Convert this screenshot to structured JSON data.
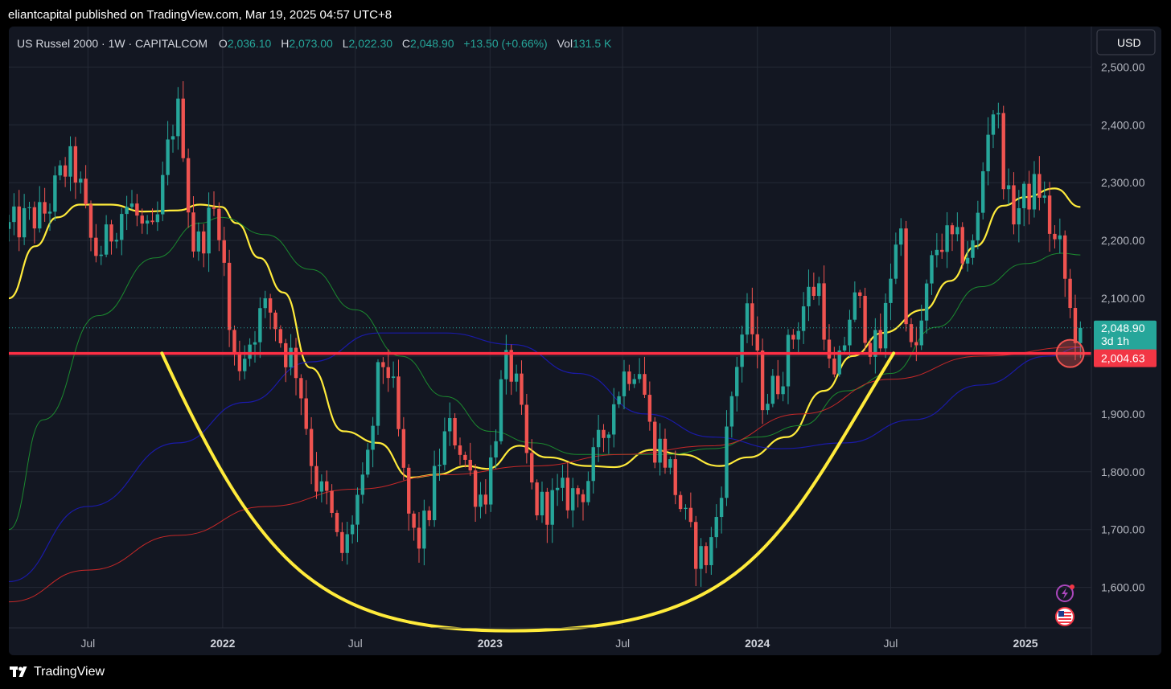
{
  "header": {
    "publisher_line": "eliantcapital published on TradingView.com, Mar 19, 2025 04:57 UTC+8"
  },
  "legend": {
    "symbol": "US Russel 2000 · 1W · CAPITALCOM",
    "o_label": "O",
    "o_value": "2,036.10",
    "h_label": "H",
    "h_value": "2,073.00",
    "l_label": "L",
    "l_value": "2,022.30",
    "c_label": "C",
    "c_value": "2,048.90",
    "change": "+13.50 (+0.66%)",
    "vol_label": "Vol",
    "vol_value": "131.5 K"
  },
  "currency_button": {
    "label": "USD"
  },
  "price_badges": {
    "last_price": "2,048.90",
    "countdown": "3d 1h",
    "line_level": "2,004.63"
  },
  "footer": {
    "brand": "TradingView"
  },
  "colors": {
    "background": "#131722",
    "grid": "#252a36",
    "up": "#26a69a",
    "down": "#ef5350",
    "ma_fast": "#ffeb3b",
    "ma_mid": "#1b8a2f",
    "ma_slow_blue": "#1a1aa8",
    "ma_slow_red": "#c62828",
    "horizontal_line": "#ff2f45",
    "cup_curve": "#ffeb3b",
    "axis_text": "#b2b5be"
  },
  "chart_data": {
    "type": "candlestick",
    "timeframe": "1W",
    "ylim": [
      1530,
      2570
    ],
    "y_ticks": [
      1600,
      1700,
      1800,
      1900,
      2000,
      2100,
      2200,
      2300,
      2400,
      2500
    ],
    "y_tick_labels": [
      "1,600.00",
      "1,700.00",
      "1,800.00",
      "1,900.00",
      "2,000.00",
      "2,100.00",
      "2,200.00",
      "2,300.00",
      "2,400.00",
      "2,500.00"
    ],
    "x_ticks": [
      {
        "date": "2021-07-01",
        "label": "Jul"
      },
      {
        "date": "2022-01-01",
        "label": "2022"
      },
      {
        "date": "2022-07-01",
        "label": "Jul"
      },
      {
        "date": "2023-01-01",
        "label": "2023"
      },
      {
        "date": "2023-07-01",
        "label": "Jul"
      },
      {
        "date": "2024-01-01",
        "label": "2024"
      },
      {
        "date": "2024-07-01",
        "label": "Jul"
      },
      {
        "date": "2025-01-01",
        "label": "2025"
      }
    ],
    "x_range": [
      "2021-03-15",
      "2025-04-01"
    ],
    "horizontal_line": {
      "value": 2004.63
    },
    "last_price": 2048.9,
    "anchors": [
      {
        "date": "2021-03-15",
        "value": 2220
      },
      {
        "date": "2021-05-01",
        "value": 2240
      },
      {
        "date": "2021-06-15",
        "value": 2330
      },
      {
        "date": "2021-07-20",
        "value": 2180
      },
      {
        "date": "2021-09-01",
        "value": 2260
      },
      {
        "date": "2021-10-01",
        "value": 2200
      },
      {
        "date": "2021-11-08",
        "value": 2420
      },
      {
        "date": "2021-12-01",
        "value": 2190
      },
      {
        "date": "2021-12-30",
        "value": 2250
      },
      {
        "date": "2022-01-25",
        "value": 1990
      },
      {
        "date": "2022-03-10",
        "value": 2080
      },
      {
        "date": "2022-04-10",
        "value": 2000
      },
      {
        "date": "2022-05-25",
        "value": 1760
      },
      {
        "date": "2022-06-20",
        "value": 1660
      },
      {
        "date": "2022-07-15",
        "value": 1760
      },
      {
        "date": "2022-08-16",
        "value": 1990
      },
      {
        "date": "2022-09-30",
        "value": 1680
      },
      {
        "date": "2022-11-15",
        "value": 1870
      },
      {
        "date": "2022-12-28",
        "value": 1760
      },
      {
        "date": "2023-02-02",
        "value": 1980
      },
      {
        "date": "2023-03-15",
        "value": 1740
      },
      {
        "date": "2023-05-01",
        "value": 1760
      },
      {
        "date": "2023-07-28",
        "value": 1990
      },
      {
        "date": "2023-08-20",
        "value": 1850
      },
      {
        "date": "2023-10-27",
        "value": 1650
      },
      {
        "date": "2023-12-27",
        "value": 2060
      },
      {
        "date": "2024-01-17",
        "value": 1930
      },
      {
        "date": "2024-03-31",
        "value": 2120
      },
      {
        "date": "2024-04-20",
        "value": 1950
      },
      {
        "date": "2024-05-20",
        "value": 2090
      },
      {
        "date": "2024-06-20",
        "value": 2010
      },
      {
        "date": "2024-07-20",
        "value": 2220
      },
      {
        "date": "2024-08-05",
        "value": 2000
      },
      {
        "date": "2024-09-15",
        "value": 2200
      },
      {
        "date": "2024-10-25",
        "value": 2180
      },
      {
        "date": "2024-11-25",
        "value": 2430
      },
      {
        "date": "2024-12-20",
        "value": 2250
      },
      {
        "date": "2025-01-25",
        "value": 2290
      },
      {
        "date": "2025-02-20",
        "value": 2190
      },
      {
        "date": "2025-03-17",
        "value": 2048
      }
    ],
    "moving_averages": [
      {
        "id": "ma_fast",
        "color": "#ffeb3b",
        "points": [
          [
            "2021-03-15",
            2100
          ],
          [
            "2021-04-20",
            2190
          ],
          [
            "2021-05-20",
            2240
          ],
          [
            "2021-06-20",
            2262
          ],
          [
            "2021-08-01",
            2262
          ],
          [
            "2021-09-15",
            2250
          ],
          [
            "2021-11-01",
            2252
          ],
          [
            "2021-12-01",
            2262
          ],
          [
            "2021-12-30",
            2258
          ],
          [
            "2022-01-20",
            2230
          ],
          [
            "2022-02-20",
            2170
          ],
          [
            "2022-03-25",
            2110
          ],
          [
            "2022-05-01",
            1980
          ],
          [
            "2022-06-15",
            1870
          ],
          [
            "2022-08-01",
            1850
          ],
          [
            "2022-09-15",
            1790
          ],
          [
            "2022-10-20",
            1795
          ],
          [
            "2022-12-01",
            1810
          ],
          [
            "2022-12-28",
            1805
          ],
          [
            "2023-02-10",
            1845
          ],
          [
            "2023-03-20",
            1825
          ],
          [
            "2023-05-15",
            1810
          ],
          [
            "2023-06-20",
            1808
          ],
          [
            "2023-08-10",
            1838
          ],
          [
            "2023-09-20",
            1830
          ],
          [
            "2023-11-10",
            1810
          ],
          [
            "2023-12-20",
            1825
          ],
          [
            "2024-02-10",
            1860
          ],
          [
            "2024-04-01",
            1940
          ],
          [
            "2024-05-10",
            2000
          ],
          [
            "2024-06-20",
            2040
          ],
          [
            "2024-08-15",
            2080
          ],
          [
            "2024-09-20",
            2130
          ],
          [
            "2024-10-25",
            2190
          ],
          [
            "2024-12-01",
            2260
          ],
          [
            "2025-01-01",
            2275
          ],
          [
            "2025-02-10",
            2290
          ],
          [
            "2025-03-17",
            2258
          ]
        ]
      },
      {
        "id": "ma_mid",
        "color": "#1b8a2f",
        "points": [
          [
            "2021-03-15",
            1700
          ],
          [
            "2021-05-01",
            1890
          ],
          [
            "2021-07-15",
            2070
          ],
          [
            "2021-10-01",
            2170
          ],
          [
            "2021-12-01",
            2230
          ],
          [
            "2021-12-30",
            2240
          ],
          [
            "2022-03-01",
            2210
          ],
          [
            "2022-05-01",
            2150
          ],
          [
            "2022-07-01",
            2080
          ],
          [
            "2022-09-01",
            2000
          ],
          [
            "2022-11-01",
            1930
          ],
          [
            "2023-01-01",
            1870
          ],
          [
            "2023-03-01",
            1850
          ],
          [
            "2023-05-01",
            1830
          ],
          [
            "2023-07-01",
            1830
          ],
          [
            "2023-09-01",
            1830
          ],
          [
            "2023-11-01",
            1840
          ],
          [
            "2024-01-01",
            1860
          ],
          [
            "2024-03-01",
            1880
          ],
          [
            "2024-05-01",
            1940
          ],
          [
            "2024-07-01",
            1970
          ],
          [
            "2024-09-01",
            2050
          ],
          [
            "2024-11-01",
            2120
          ],
          [
            "2025-01-01",
            2160
          ],
          [
            "2025-02-20",
            2178
          ],
          [
            "2025-03-17",
            2175
          ]
        ]
      },
      {
        "id": "ma_slow_blue",
        "color": "#1a1aa8",
        "points": [
          [
            "2021-03-15",
            1610
          ],
          [
            "2021-07-01",
            1740
          ],
          [
            "2021-11-01",
            1850
          ],
          [
            "2022-02-01",
            1920
          ],
          [
            "2022-05-01",
            1990
          ],
          [
            "2022-08-01",
            2040
          ],
          [
            "2022-11-01",
            2040
          ],
          [
            "2023-02-01",
            2020
          ],
          [
            "2023-05-01",
            1970
          ],
          [
            "2023-08-01",
            1900
          ],
          [
            "2023-11-01",
            1860
          ],
          [
            "2024-02-01",
            1840
          ],
          [
            "2024-05-01",
            1850
          ],
          [
            "2024-08-01",
            1890
          ],
          [
            "2024-11-01",
            1950
          ],
          [
            "2025-02-01",
            2000
          ],
          [
            "2025-03-17",
            2015
          ]
        ]
      },
      {
        "id": "ma_slow_red",
        "color": "#c62828",
        "points": [
          [
            "2021-03-15",
            1575
          ],
          [
            "2021-07-01",
            1630
          ],
          [
            "2021-11-01",
            1690
          ],
          [
            "2022-03-01",
            1740
          ],
          [
            "2022-07-01",
            1770
          ],
          [
            "2022-11-01",
            1795
          ],
          [
            "2023-03-01",
            1810
          ],
          [
            "2023-07-01",
            1830
          ],
          [
            "2023-11-01",
            1845
          ],
          [
            "2024-03-01",
            1900
          ],
          [
            "2024-07-01",
            1960
          ],
          [
            "2024-11-01",
            2000
          ],
          [
            "2025-03-17",
            2016
          ]
        ]
      }
    ],
    "annotations": {
      "cup_curve": {
        "start": {
          "date": "2021-10-10",
          "value": 2005
        },
        "bottom": {
          "date": "2023-01-28",
          "value": 1525
        },
        "end": {
          "date": "2024-07-05",
          "value": 2005
        },
        "color": "#ffeb3b"
      },
      "circle_marker": {
        "date": "2025-03-03",
        "value": 2004.63
      }
    }
  }
}
